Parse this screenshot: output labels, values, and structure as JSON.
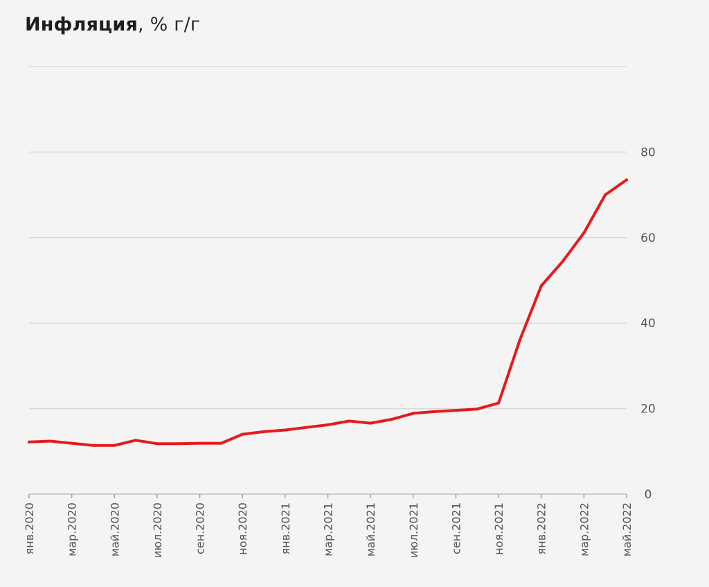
{
  "chart_data": {
    "type": "line",
    "title_bold": "Инфляция",
    "title_rest": ", % г/г",
    "xlabel": "",
    "ylabel": "",
    "ylim": [
      0,
      100
    ],
    "yticks": [
      0,
      20,
      40,
      60,
      80
    ],
    "grid": true,
    "legend": "none",
    "x_tick_labels": [
      "янв.2020",
      "мар.2020",
      "май.2020",
      "июл.2020",
      "сен.2020",
      "ноя.2020",
      "янв.2021",
      "мар.2021",
      "май.2021",
      "июл.2021",
      "сен.2021",
      "ноя.2021",
      "янв.2022",
      "мар.2022",
      "май.2022"
    ],
    "series": [
      {
        "color": "#e8191c",
        "x": [
          "2020-01",
          "2020-02",
          "2020-03",
          "2020-04",
          "2020-05",
          "2020-06",
          "2020-07",
          "2020-08",
          "2020-09",
          "2020-10",
          "2020-11",
          "2020-12",
          "2021-01",
          "2021-02",
          "2021-03",
          "2021-04",
          "2021-05",
          "2021-06",
          "2021-07",
          "2021-08",
          "2021-09",
          "2021-10",
          "2021-11",
          "2021-12",
          "2022-01",
          "2022-02",
          "2022-03",
          "2022-04",
          "2022-05"
        ],
        "values": [
          12.2,
          12.4,
          11.9,
          11.4,
          11.4,
          12.6,
          11.8,
          11.8,
          11.9,
          11.9,
          14.0,
          14.6,
          15.0,
          15.6,
          16.2,
          17.1,
          16.6,
          17.5,
          18.9,
          19.3,
          19.6,
          19.9,
          21.3,
          36.1,
          48.7,
          54.4,
          61.1,
          70.0,
          73.5
        ]
      }
    ]
  }
}
